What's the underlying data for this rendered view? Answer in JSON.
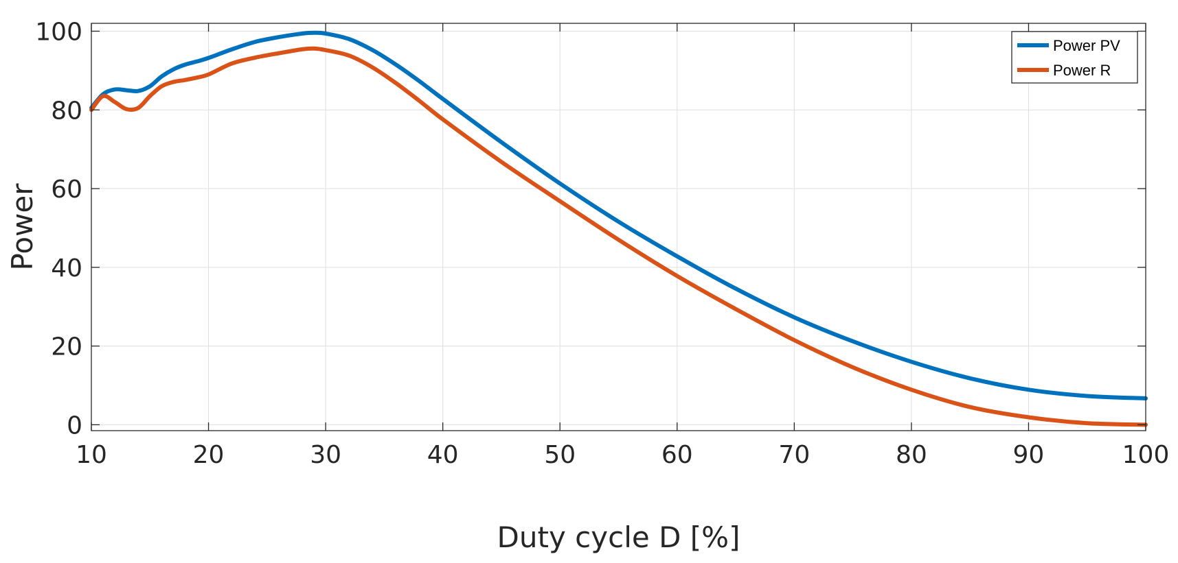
{
  "chart_data": {
    "type": "line",
    "title": "",
    "xlabel": "Duty cycle D [%]",
    "ylabel": "Power",
    "xlim": [
      10,
      100
    ],
    "ylim": [
      -1.5,
      102
    ],
    "xticks": [
      10,
      20,
      30,
      40,
      50,
      60,
      70,
      80,
      90,
      100
    ],
    "yticks": [
      0,
      20,
      40,
      60,
      80,
      100
    ],
    "grid": true,
    "legend_position": "top-right",
    "x": [
      10,
      11,
      12,
      13,
      14,
      15,
      16,
      17,
      18,
      19,
      20,
      22,
      24,
      26,
      28,
      29,
      30,
      32,
      34,
      36,
      38,
      40,
      45,
      50,
      55,
      60,
      65,
      70,
      75,
      80,
      85,
      90,
      95,
      100
    ],
    "series": [
      {
        "name": "Power PV",
        "color": "#0072BD",
        "values": [
          80.5,
          84.0,
          85.2,
          85.0,
          84.8,
          86.0,
          88.5,
          90.3,
          91.5,
          92.3,
          93.2,
          95.4,
          97.3,
          98.5,
          99.4,
          99.6,
          99.4,
          98.0,
          95.2,
          91.5,
          87.3,
          82.8,
          71.8,
          61.3,
          51.6,
          42.8,
          34.6,
          27.3,
          21.2,
          16.0,
          11.8,
          8.9,
          7.3,
          6.7
        ]
      },
      {
        "name": "Power R",
        "color": "#D95319",
        "values": [
          80.0,
          83.5,
          82.0,
          80.2,
          80.5,
          83.5,
          86.0,
          87.1,
          87.6,
          88.2,
          89.0,
          91.8,
          93.3,
          94.4,
          95.4,
          95.6,
          95.2,
          93.8,
          90.8,
          86.8,
          82.3,
          77.6,
          66.8,
          56.8,
          47.0,
          37.8,
          29.4,
          21.5,
          14.6,
          8.9,
          4.5,
          1.9,
          0.4,
          0.0
        ]
      }
    ]
  }
}
